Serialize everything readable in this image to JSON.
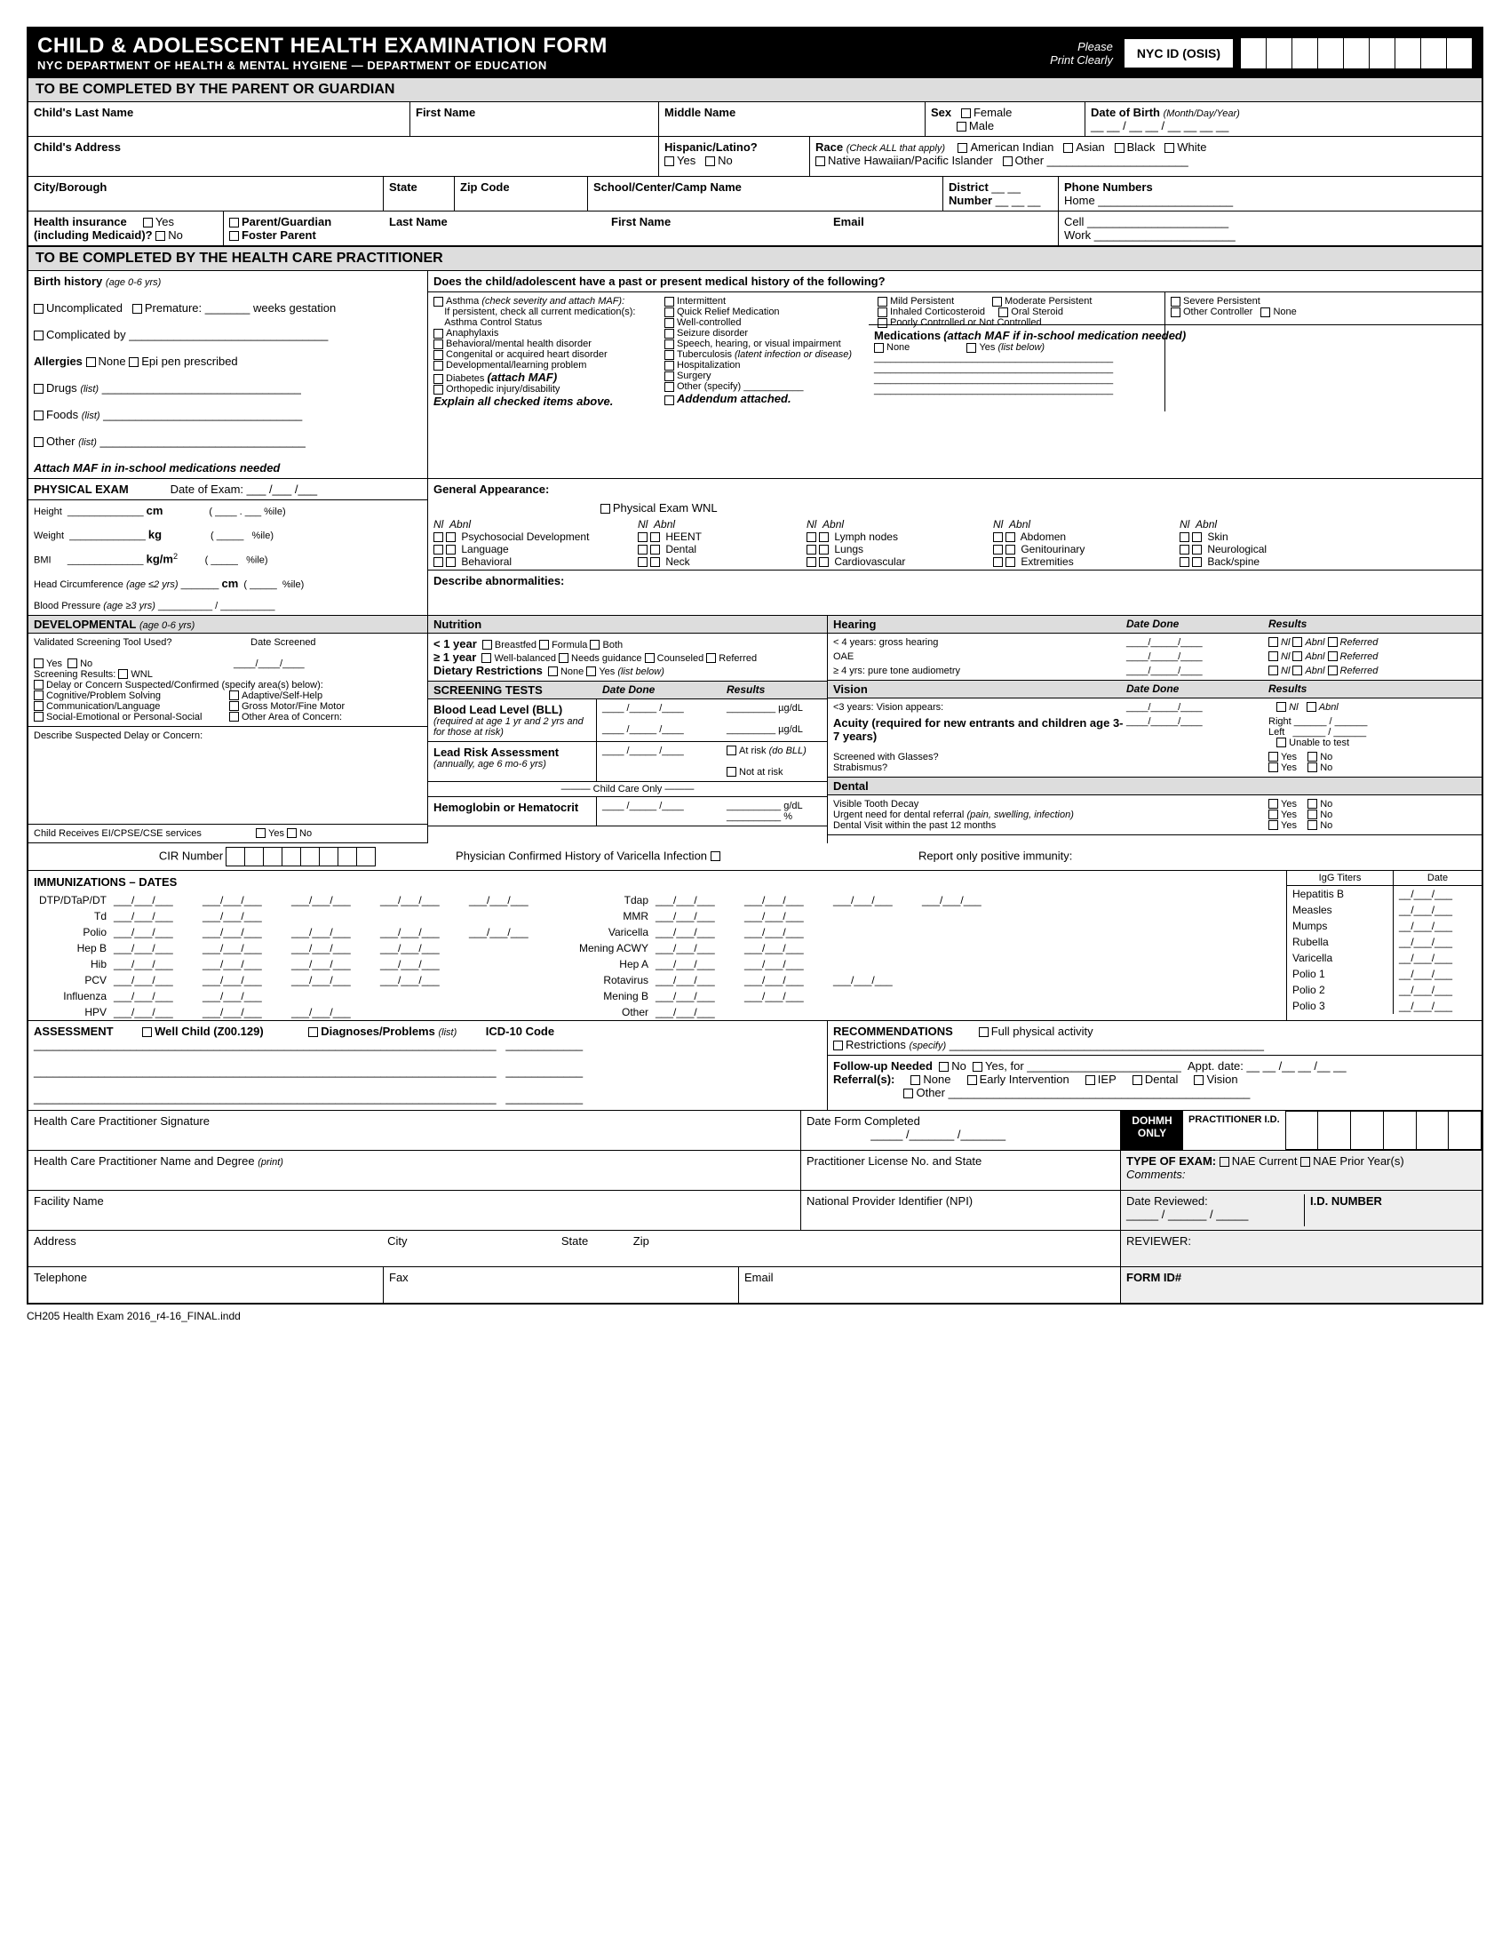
{
  "header": {
    "title": "CHILD & ADOLESCENT HEALTH EXAMINATION FORM",
    "subtitle": "NYC DEPARTMENT OF HEALTH & MENTAL HYGIENE   —   DEPARTMENT OF EDUCATION",
    "please": "Please",
    "print": "Print Clearly",
    "nycid": "NYC ID (OSIS)"
  },
  "s1": {
    "title": "TO BE COMPLETED BY THE PARENT OR GUARDIAN",
    "last": "Child's Last Name",
    "first": "First Name",
    "middle": "Middle Name",
    "sex": "Sex",
    "female": "Female",
    "male": "Male",
    "dob": "Date of Birth",
    "dobNote": "(Month/Day/Year)",
    "dobSlash": "__ __ / __ __ / __ __ __ __",
    "addr": "Child's Address",
    "hisp": "Hispanic/Latino?",
    "yes": "Yes",
    "no": "No",
    "race": "Race",
    "raceNote": "(Check ALL that apply)",
    "ai": "American Indian",
    "asian": "Asian",
    "black": "Black",
    "white": "White",
    "nhpi": "Native Hawaiian/Pacific Islander",
    "other": "Other",
    "city": "City/Borough",
    "state": "State",
    "zip": "Zip Code",
    "school": "School/Center/Camp Name",
    "district": "District",
    "number": "Number",
    "districtU": "__ __",
    "numberU": "__ __ __",
    "phones": "Phone Numbers",
    "home": "Home",
    "cell": "Cell",
    "work": "Work",
    "hi": "Health insurance",
    "hiNote": "(including Medicaid)?",
    "pg": "Parent/Guardian",
    "fp": "Foster Parent",
    "lastName": "Last Name",
    "firstName": "First Name",
    "email": "Email"
  },
  "s2": {
    "title": "TO BE COMPLETED BY THE HEALTH CARE PRACTITIONER",
    "bh": "Birth history",
    "bhAge": "(age 0-6 yrs)",
    "uncomp": "Uncomplicated",
    "prem": "Premature:",
    "weeks": "weeks gestation",
    "comp": "Complicated by",
    "allergies": "Allergies",
    "none": "None",
    "epi": "Epi pen prescribed",
    "drugs": "Drugs",
    "foods": "Foods",
    "other": "Other",
    "list": "(list)",
    "attachMaf": "Attach MAF in in-school medications needed",
    "histQ": "Does the child/adolescent have a past or present medical history of the following?",
    "asthma": "Asthma",
    "asthmaNote": "(check severity and attach MAF):",
    "asthmaNote2": "If persistent, check all current medication(s):",
    "acs": "Asthma Control Status",
    "inter": "Intermittent",
    "mildP": "Mild Persistent",
    "modP": "Moderate Persistent",
    "sevP": "Severe Persistent",
    "qrm": "Quick Relief Medication",
    "ic": "Inhaled Corticosteroid",
    "os": "Oral Steroid",
    "oc": "Other Controller",
    "wc": "Well-controlled",
    "pc": "Poorly Controlled or Not Controlled",
    "ana": "Anaphylaxis",
    "bmh": "Behavioral/mental health disorder",
    "chd": "Congenital or acquired heart disorder",
    "dlp": "Developmental/learning problem",
    "diab": "Diabetes",
    "diabNote": "(attach MAF)",
    "oid": "Orthopedic injury/disability",
    "explain": "Explain all checked items above.",
    "seiz": "Seizure disorder",
    "shv": "Speech, hearing, or visual impairment",
    "tb": "Tuberculosis",
    "tbNote": "(latent infection or disease)",
    "hosp": "Hospitalization",
    "surg": "Surgery",
    "othS": "Other (specify)",
    "add": "Addendum attached.",
    "meds": "Medications",
    "medsNote": "(attach MAF if in-school medication needed)",
    "yesLB": "Yes",
    "yesNote": "(list below)"
  },
  "pe": {
    "title": "PHYSICAL EXAM",
    "doe": "Date of Exam:",
    "doeU": "___ /___ /___",
    "height": "Height",
    "cm": "cm",
    "weight": "Weight",
    "kg": "kg",
    "bmi": "BMI",
    "kgm2": "kg/m",
    "sup2": "2",
    "hc": "Head Circumference",
    "hcAge": "(age ≤2 yrs)",
    "bp": "Blood Pressure",
    "bpAge": "(age ≥3 yrs)",
    "pile": "%ile)",
    "ga": "General Appearance:",
    "pewnl": "Physical Exam WNL",
    "nl": "Nl",
    "abnl": "Abnl",
    "pd": "Psychosocial Development",
    "lang": "Language",
    "beh": "Behavioral",
    "heent": "HEENT",
    "dental": "Dental",
    "neck": "Neck",
    "ln": "Lymph nodes",
    "lungs": "Lungs",
    "cv": "Cardiovascular",
    "abd": "Abdomen",
    "gu": "Genitourinary",
    "ext": "Extremities",
    "skin": "Skin",
    "neuro": "Neurological",
    "bs": "Back/spine",
    "desc": "Describe abnormalities:"
  },
  "dev": {
    "title": "DEVELOPMENTAL",
    "age": "(age 0-6 yrs)",
    "vstu": "Validated Screening Tool Used?",
    "ds": "Date Screened",
    "sr": "Screening Results:",
    "wnl": "WNL",
    "delay": "Delay or Concern Suspected/Confirmed (specify area(s) below):",
    "cps": "Cognitive/Problem Solving",
    "ash": "Adaptive/Self-Help",
    "cl": "Communication/Language",
    "gmfm": "Gross Motor/Fine Motor",
    "seps": "Social-Emotional or Personal-Social",
    "oac": "Other Area of Concern:",
    "dsdc": "Describe Suspected Delay or Concern:",
    "ei": "Child Receives EI/CPSE/CSE services"
  },
  "nut": {
    "title": "Nutrition",
    "lt1": "< 1 year",
    "bf": "Breastfed",
    "form": "Formula",
    "both": "Both",
    "ge1": "≥ 1 year",
    "wb": "Well-balanced",
    "ng": "Needs guidance",
    "coun": "Counseled",
    "ref": "Referred",
    "dr": "Dietary Restrictions",
    "none": "None",
    "yes": "Yes",
    "lb": "(list below)"
  },
  "st": {
    "title": "SCREENING TESTS",
    "dd": "Date Done",
    "res": "Results",
    "bll": "Blood Lead Level (BLL)",
    "bllNote": "(required at age 1 yr and 2 yrs and for those at risk)",
    "ugdl": "µg/dL",
    "lra": "Lead Risk Assessment",
    "lraNote": "(annually, age 6 mo-6 yrs)",
    "atr": "At risk",
    "atrNote": "(do BLL)",
    "notr": "Not at risk",
    "cco": "Child Care Only",
    "hh": "Hemoglobin or Hematocrit",
    "gdl": "g/dL",
    "pct": "%"
  },
  "hear": {
    "title": "Hearing",
    "dd": "Date Done",
    "res": "Results",
    "lt4": "< 4 years: gross hearing",
    "oae": "OAE",
    "ge4": "≥ 4 yrs: pure tone audiometry",
    "nl": "Nl",
    "abnl": "Abnl",
    "ref": "Referred"
  },
  "vis": {
    "title": "Vision",
    "dd": "Date Done",
    "res": "Results",
    "lt3": "<3 years: Vision appears:",
    "nl": "Nl",
    "abnl": "Abnl",
    "acuity": "Acuity (required for new entrants and children age 3-7 years)",
    "right": "Right",
    "left": "Left",
    "utt": "Unable to test",
    "swg": "Screened with Glasses?",
    "strab": "Strabismus?",
    "yes": "Yes",
    "no": "No"
  },
  "dent": {
    "title": "Dental",
    "vtd": "Visible Tooth Decay",
    "undr": "Urgent need for dental referral",
    "undrNote": "(pain, swelling, infection)",
    "dv12": "Dental Visit within the past 12 months",
    "yes": "Yes",
    "no": "No"
  },
  "imm": {
    "cir": "CIR Number",
    "pchvi": "Physician Confirmed History of Varicella Infection",
    "rpi": "Report only positive immunity:",
    "title": "IMMUNIZATIONS – DATES",
    "igg": "IgG Titers",
    "date": "Date",
    "dtp": "DTP/DTaP/DT",
    "td": "Td",
    "polio": "Polio",
    "hepb": "Hep B",
    "hib": "Hib",
    "pcv": "PCV",
    "inf": "Influenza",
    "hpv": "HPV",
    "tdap": "Tdap",
    "mmr": "MMR",
    "var": "Varicella",
    "macwy": "Mening ACWY",
    "hepa": "Hep A",
    "rota": "Rotavirus",
    "mb": "Mening B",
    "other": "Other",
    "hepBt": "Hepatitis B",
    "meas": "Measles",
    "mumps": "Mumps",
    "rub": "Rubella",
    "vart": "Varicella",
    "p1": "Polio 1",
    "p2": "Polio 2",
    "p3": "Polio 3",
    "slot": "___/___/___"
  },
  "asmt": {
    "title": "ASSESSMENT",
    "wc": "Well Child (Z00.129)",
    "dp": "Diagnoses/Problems",
    "list": "(list)",
    "icd": "ICD-10 Code",
    "rec": "RECOMMENDATIONS",
    "fpa": "Full physical activity",
    "rest": "Restrictions",
    "spec": "(specify)",
    "fun": "Follow-up Needed",
    "no": "No",
    "yesfor": "Yes, for",
    "appt": "Appt. date:",
    "apptU": "__ __ /__ __ /__ __",
    "refs": "Referral(s):",
    "none": "None",
    "ei": "Early Intervention",
    "iep": "IEP",
    "dental": "Dental",
    "vision": "Vision",
    "other": "Other"
  },
  "sig": {
    "hcps": "Health Care Practitioner Signature",
    "dfc": "Date Form Completed",
    "dohm": "DOHMH ONLY",
    "pid": "PRACTITIONER I.D.",
    "hcpnd": "Health Care Practitioner Name and Degree",
    "print": "(print)",
    "plns": "Practitioner License No. and State",
    "toe": "TYPE OF EXAM:",
    "nae": "NAE Current",
    "naep": "NAE Prior Year(s)",
    "comm": "Comments:",
    "fn": "Facility Name",
    "npi": "National Provider Identifier (NPI)",
    "dr": "Date Reviewed:",
    "idn": "I.D. NUMBER",
    "rev": "REVIEWER:",
    "addr": "Address",
    "city": "City",
    "state": "State",
    "zip": "Zip",
    "tel": "Telephone",
    "fax": "Fax",
    "email": "Email",
    "formid": "FORM ID#"
  },
  "footer": "CH205 Health Exam 2016_r4-16_FINAL.indd"
}
